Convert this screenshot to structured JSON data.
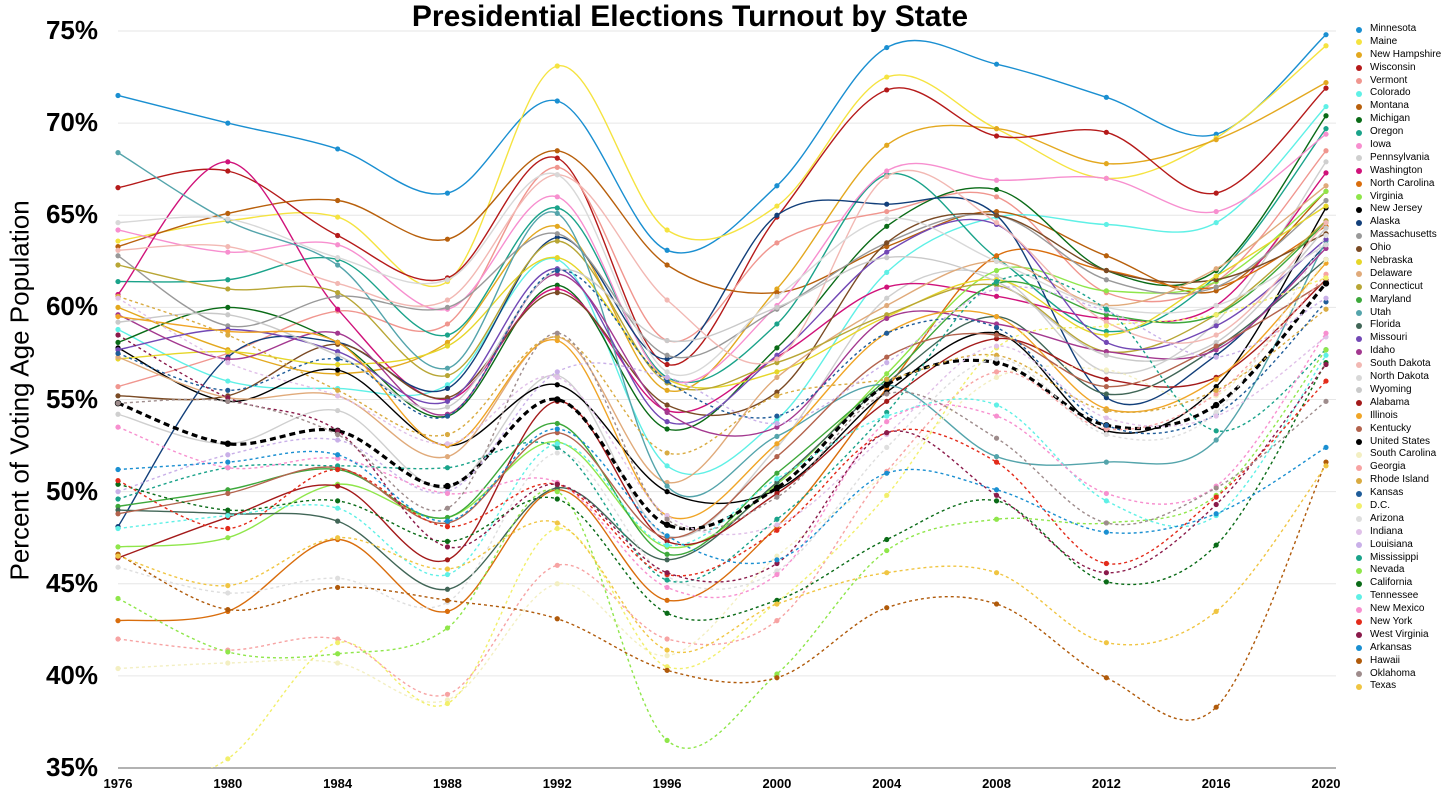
{
  "chart_data": {
    "type": "line",
    "title": "Presidential Elections Turnout by State",
    "xlabel": "",
    "ylabel": "Percent of Voting Age Population",
    "x": [
      1976,
      1980,
      1984,
      1988,
      1992,
      1996,
      2000,
      2004,
      2008,
      2012,
      2016,
      2020
    ],
    "ylim": [
      35,
      75
    ],
    "yticks": [
      "35%",
      "40%",
      "45%",
      "50%",
      "55%",
      "60%",
      "65%",
      "70%",
      "75%"
    ],
    "xticks": [
      "1976",
      "1980",
      "1984",
      "1988",
      "1992",
      "1996",
      "2000",
      "2004",
      "2008",
      "2012",
      "2016",
      "2020"
    ],
    "grid": "horizontal",
    "legend_position": "right",
    "series": [
      {
        "name": "Minnesota",
        "color": "#1a8fd1",
        "dash": false,
        "values": [
          71.5,
          70.0,
          68.6,
          66.2,
          71.2,
          63.1,
          66.6,
          74.1,
          73.2,
          71.4,
          69.4,
          74.8
        ]
      },
      {
        "name": "Maine",
        "color": "#f5e340",
        "dash": false,
        "values": [
          63.6,
          64.7,
          64.9,
          61.4,
          73.1,
          64.2,
          65.5,
          72.5,
          69.7,
          67.0,
          69.2,
          74.2
        ]
      },
      {
        "name": "New Hampshire",
        "color": "#e3a81f",
        "dash": false,
        "values": [
          60.0,
          57.7,
          56.4,
          58.1,
          64.4,
          55.5,
          61.0,
          68.8,
          69.7,
          67.8,
          69.1,
          72.2
        ]
      },
      {
        "name": "Wisconsin",
        "color": "#b51a1a",
        "dash": false,
        "values": [
          66.5,
          67.4,
          63.9,
          61.6,
          68.1,
          56.9,
          64.9,
          71.8,
          69.3,
          69.5,
          66.2,
          71.9
        ]
      },
      {
        "name": "Vermont",
        "color": "#f0968f",
        "dash": false,
        "values": [
          55.7,
          57.5,
          59.8,
          59.1,
          67.6,
          58.2,
          63.5,
          65.2,
          66.0,
          60.8,
          61.4,
          68.5
        ]
      },
      {
        "name": "Colorado",
        "color": "#5ff0e6",
        "dash": false,
        "values": [
          58.8,
          56.0,
          55.6,
          55.8,
          62.6,
          51.4,
          53.9,
          61.9,
          64.9,
          64.5,
          64.6,
          70.9
        ]
      },
      {
        "name": "Montana",
        "color": "#b8600c",
        "dash": false,
        "values": [
          63.3,
          65.1,
          65.8,
          63.7,
          68.5,
          62.3,
          60.8,
          63.3,
          65.2,
          62.8,
          60.9,
          66.3
        ]
      },
      {
        "name": "Michigan",
        "color": "#0a6b17",
        "dash": false,
        "values": [
          58.1,
          60.0,
          58.1,
          54.1,
          61.2,
          53.4,
          57.8,
          64.4,
          66.4,
          62.0,
          62.0,
          70.4
        ]
      },
      {
        "name": "Oregon",
        "color": "#1aa38a",
        "dash": false,
        "values": [
          61.4,
          61.5,
          62.6,
          58.5,
          65.4,
          56.2,
          59.1,
          67.2,
          62.7,
          58.7,
          61.7,
          69.7
        ]
      },
      {
        "name": "Iowa",
        "color": "#f78fcf",
        "dash": false,
        "values": [
          64.2,
          63.0,
          63.4,
          59.9,
          66.0,
          56.1,
          60.1,
          67.4,
          66.9,
          67.0,
          65.2,
          69.4
        ]
      },
      {
        "name": "Pennsylvania",
        "color": "#cfcfcf",
        "dash": false,
        "values": [
          54.2,
          52.6,
          54.4,
          50.2,
          56.3,
          47.6,
          52.4,
          60.5,
          61.7,
          56.5,
          59.2,
          67.9
        ]
      },
      {
        "name": "Washington",
        "color": "#d0127a",
        "dash": false,
        "values": [
          60.7,
          67.9,
          59.9,
          55.0,
          61.0,
          54.4,
          57.3,
          61.1,
          60.6,
          59.4,
          60.1,
          67.3
        ]
      },
      {
        "name": "North Carolina",
        "color": "#d96d0c",
        "dash": false,
        "values": [
          43.0,
          43.5,
          47.4,
          43.5,
          50.1,
          44.1,
          48.1,
          55.6,
          62.8,
          62.0,
          61.1,
          64.4
        ]
      },
      {
        "name": "Virginia",
        "color": "#8fe64a",
        "dash": false,
        "values": [
          47.0,
          47.5,
          50.4,
          48.6,
          52.7,
          47.0,
          50.4,
          56.4,
          62.0,
          60.9,
          61.4,
          66.3
        ]
      },
      {
        "name": "New Jersey",
        "color": "#000000",
        "dash": false,
        "values": [
          57.8,
          54.9,
          56.6,
          52.5,
          55.8,
          50.0,
          50.1,
          55.4,
          58.6,
          53.3,
          55.7,
          65.4
        ]
      },
      {
        "name": "Alaska",
        "color": "#123f7a",
        "dash": false,
        "values": [
          48.1,
          57.3,
          58.1,
          55.6,
          63.8,
          57.2,
          65.0,
          65.6,
          65.0,
          55.1,
          57.4,
          63.4
        ]
      },
      {
        "name": "Massachusetts",
        "color": "#999999",
        "dash": false,
        "values": [
          62.8,
          59.0,
          60.6,
          60.0,
          64.0,
          57.4,
          59.9,
          63.5,
          65.0,
          61.5,
          61.1,
          65.8
        ]
      },
      {
        "name": "Ohio",
        "color": "#7a4a24",
        "dash": false,
        "values": [
          55.2,
          55.2,
          58.0,
          55.1,
          60.8,
          54.7,
          55.4,
          63.5,
          65.0,
          62.0,
          61.5,
          64.0
        ]
      },
      {
        "name": "Nebraska",
        "color": "#e6d629",
        "dash": false,
        "values": [
          57.2,
          57.6,
          56.9,
          57.9,
          62.7,
          56.1,
          56.5,
          59.5,
          61.5,
          58.5,
          61.7,
          65.5
        ]
      },
      {
        "name": "Delaware",
        "color": "#e0aa7a",
        "dash": false,
        "values": [
          57.3,
          55.1,
          55.2,
          51.9,
          58.4,
          50.5,
          56.2,
          60.1,
          62.5,
          60.1,
          62.1,
          66.6
        ]
      },
      {
        "name": "Connecticut",
        "color": "#b8a635",
        "dash": false,
        "values": [
          62.3,
          61.0,
          60.8,
          56.3,
          63.6,
          55.9,
          57.0,
          59.6,
          61.2,
          57.6,
          59.6,
          64.7
        ]
      },
      {
        "name": "Maryland",
        "color": "#3da83b",
        "dash": false,
        "values": [
          49.2,
          50.1,
          51.2,
          48.6,
          53.7,
          46.6,
          51.0,
          56.1,
          61.3,
          59.6,
          59.6,
          64.6
        ]
      },
      {
        "name": "Utah",
        "color": "#54a4ab",
        "dash": false,
        "values": [
          68.4,
          64.7,
          62.3,
          56.7,
          65.1,
          50.3,
          53.0,
          55.8,
          51.9,
          51.6,
          52.8,
          63.6
        ]
      },
      {
        "name": "Florida",
        "color": "#416657",
        "dash": false,
        "values": [
          49.0,
          48.8,
          48.4,
          44.7,
          50.2,
          46.3,
          50.5,
          55.9,
          59.5,
          55.3,
          57.8,
          62.6
        ]
      },
      {
        "name": "Missouri",
        "color": "#7248b5",
        "dash": false,
        "values": [
          57.7,
          58.8,
          57.6,
          54.9,
          62.1,
          53.8,
          57.4,
          63.0,
          64.5,
          58.1,
          59.0,
          63.7
        ]
      },
      {
        "name": "Idaho",
        "color": "#a3388f",
        "dash": false,
        "values": [
          59.6,
          57.2,
          58.6,
          54.2,
          61.8,
          54.3,
          53.5,
          59.4,
          59.1,
          57.6,
          57.7,
          63.2
        ]
      },
      {
        "name": "South Dakota",
        "color": "#f2b8b3",
        "dash": false,
        "values": [
          63.1,
          63.3,
          61.3,
          60.4,
          67.2,
          60.4,
          57.2,
          67.1,
          64.6,
          59.2,
          58.5,
          64.6
        ]
      },
      {
        "name": "North Dakota",
        "color": "#d8d8d8",
        "dash": false,
        "values": [
          64.6,
          64.8,
          62.7,
          61.5,
          67.2,
          56.5,
          60.6,
          64.8,
          62.5,
          60.0,
          60.1,
          63.4
        ]
      },
      {
        "name": "Wyoming",
        "color": "#c9c9c9",
        "dash": false,
        "values": [
          59.2,
          59.6,
          57.4,
          54.6,
          62.0,
          58.2,
          60.0,
          62.7,
          61.4,
          57.4,
          58.1,
          64.3
        ]
      },
      {
        "name": "Alabama",
        "color": "#a31a1a",
        "dash": false,
        "values": [
          46.4,
          48.6,
          50.3,
          46.3,
          54.9,
          47.3,
          49.9,
          54.9,
          58.3,
          56.1,
          56.2,
          61.5
        ]
      },
      {
        "name": "Illinois",
        "color": "#f0a526",
        "dash": false,
        "values": [
          59.5,
          58.7,
          58.1,
          52.5,
          58.2,
          48.7,
          52.6,
          58.6,
          59.5,
          54.5,
          56.1,
          62.4
        ]
      },
      {
        "name": "Kentucky",
        "color": "#b3634d",
        "dash": false,
        "values": [
          48.8,
          49.9,
          51.3,
          48.3,
          53.2,
          47.5,
          51.9,
          57.3,
          58.5,
          55.7,
          57.9,
          61.4
        ]
      },
      {
        "name": "United States",
        "color": "#000000",
        "dash": true,
        "values": [
          54.8,
          52.6,
          53.3,
          50.3,
          55.0,
          48.2,
          50.2,
          55.8,
          57.0,
          53.6,
          54.7,
          61.3
        ]
      },
      {
        "name": "South Carolina",
        "color": "#f3efc2",
        "dash": true,
        "values": [
          40.4,
          40.7,
          40.7,
          38.7,
          45.0,
          41.1,
          46.5,
          51.0,
          56.2,
          56.6,
          55.2,
          62.6
        ]
      },
      {
        "name": "Georgia",
        "color": "#f7a3a3",
        "dash": true,
        "values": [
          42.0,
          41.4,
          42.0,
          39.0,
          46.0,
          42.0,
          43.0,
          51.1,
          56.5,
          53.4,
          55.3,
          61.8
        ]
      },
      {
        "name": "Rhode Island",
        "color": "#d9ab41",
        "dash": true,
        "values": [
          60.6,
          58.5,
          55.5,
          53.1,
          58.4,
          52.1,
          55.2,
          56.1,
          57.4,
          54.4,
          55.5,
          59.9
        ]
      },
      {
        "name": "Kansas",
        "color": "#1f5c99",
        "dash": true,
        "values": [
          57.5,
          55.5,
          57.2,
          54.1,
          62.0,
          56.0,
          54.1,
          58.6,
          58.9,
          53.6,
          54.2,
          60.3
        ]
      },
      {
        "name": "D.C.",
        "color": "#f2ef6b",
        "dash": true,
        "values": [
          33.5,
          35.5,
          41.8,
          38.5,
          48.0,
          40.5,
          44.0,
          49.8,
          57.8,
          59.0,
          59.6,
          61.6
        ]
      },
      {
        "name": "Arizona",
        "color": "#dedede",
        "dash": true,
        "values": [
          45.9,
          44.5,
          45.3,
          44.0,
          52.1,
          45.4,
          45.7,
          52.4,
          57.2,
          53.1,
          54.3,
          63.9
        ]
      },
      {
        "name": "Indiana",
        "color": "#e0c0e8",
        "dash": true,
        "values": [
          60.5,
          57.0,
          55.2,
          52.6,
          56.2,
          48.7,
          48.2,
          53.1,
          57.9,
          54.0,
          54.1,
          58.4
        ]
      },
      {
        "name": "Louisiana",
        "color": "#c9b0e8",
        "dash": true,
        "values": [
          50.0,
          52.0,
          52.8,
          50.0,
          56.5,
          56.2,
          53.7,
          57.0,
          61.0,
          59.8,
          57.3,
          60.5
        ]
      },
      {
        "name": "Mississippi",
        "color": "#1aa38a",
        "dash": true,
        "values": [
          49.6,
          51.3,
          51.4,
          51.3,
          52.4,
          45.2,
          48.5,
          54.3,
          61.4,
          59.9,
          53.3,
          57.7
        ]
      },
      {
        "name": "Nevada",
        "color": "#8fe64a",
        "dash": true,
        "values": [
          44.2,
          41.3,
          41.2,
          42.6,
          50.0,
          36.5,
          40.1,
          46.8,
          48.5,
          48.3,
          49.8,
          57.7
        ]
      },
      {
        "name": "California",
        "color": "#0a6b17",
        "dash": true,
        "values": [
          50.4,
          49.0,
          49.5,
          47.3,
          49.6,
          43.4,
          44.1,
          47.4,
          49.5,
          45.1,
          47.1,
          57.0
        ]
      },
      {
        "name": "Tennessee",
        "color": "#5ff0e6",
        "dash": true,
        "values": [
          48.0,
          48.7,
          49.1,
          45.5,
          52.6,
          47.1,
          50.7,
          54.1,
          54.7,
          49.5,
          48.7,
          57.4
        ]
      },
      {
        "name": "New Mexico",
        "color": "#f78fcf",
        "dash": true,
        "values": [
          53.5,
          51.3,
          51.8,
          49.9,
          50.5,
          44.8,
          45.5,
          53.8,
          54.1,
          49.9,
          50.3,
          58.6
        ]
      },
      {
        "name": "New York",
        "color": "#e32b1a",
        "dash": true,
        "values": [
          50.6,
          48.0,
          51.2,
          48.1,
          50.4,
          45.5,
          47.9,
          53.2,
          51.6,
          46.1,
          49.7,
          56.0
        ]
      },
      {
        "name": "West Virginia",
        "color": "#8a1a4a",
        "dash": true,
        "values": [
          58.5,
          55.1,
          53.3,
          47.0,
          50.4,
          45.6,
          46.1,
          53.2,
          49.8,
          45.6,
          49.3,
          56.9
        ]
      },
      {
        "name": "Arkansas",
        "color": "#1a8fd1",
        "dash": true,
        "values": [
          51.2,
          51.6,
          52.0,
          48.4,
          53.4,
          47.6,
          46.3,
          51.0,
          50.1,
          47.8,
          48.8,
          52.4
        ]
      },
      {
        "name": "Hawaii",
        "color": "#b05a0a",
        "dash": true,
        "values": [
          46.6,
          43.6,
          44.8,
          44.1,
          43.1,
          40.3,
          39.9,
          43.7,
          43.9,
          39.9,
          38.3,
          51.6
        ]
      },
      {
        "name": "Oklahoma",
        "color": "#9e8c8c",
        "dash": true,
        "values": [
          54.8,
          54.9,
          53.1,
          49.1,
          58.6,
          48.5,
          49.7,
          55.3,
          52.9,
          48.3,
          50.2,
          54.9
        ]
      },
      {
        "name": "Texas",
        "color": "#f0c542",
        "dash": true,
        "values": [
          46.5,
          44.9,
          47.5,
          45.8,
          48.3,
          41.4,
          43.9,
          45.6,
          45.6,
          41.8,
          43.5,
          51.4
        ]
      }
    ]
  }
}
